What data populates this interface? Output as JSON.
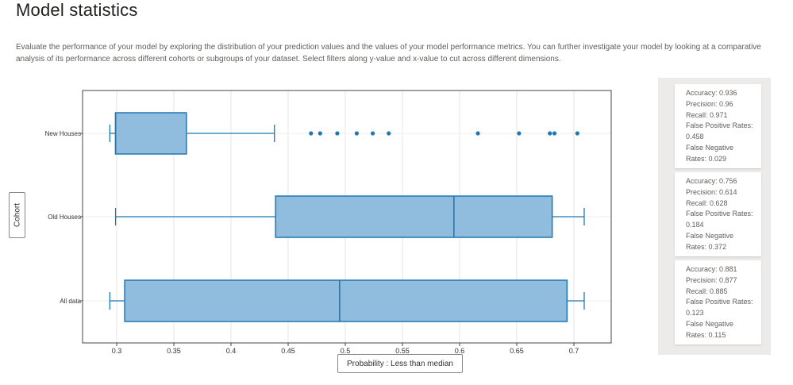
{
  "page": {
    "title": "Model statistics",
    "description": "Evaluate the performance of your model by exploring the distribution of your prediction values and the values of your model performance metrics. You can further investigate your model by looking at a comparative analysis of its performance across different cohorts or subgroups of your dataset. Select filters along y-value and x-value to cut across different dimensions."
  },
  "controls": {
    "y_axis_button": "Cohort",
    "x_axis_button": "Probability : Less than median"
  },
  "colors": {
    "box_fill": "#8ab8dc",
    "box_stroke": "#1f77b4",
    "outlier": "#1f77b4"
  },
  "chart_data": {
    "type": "box",
    "orientation": "horizontal",
    "xlim": [
      0.27,
      0.73
    ],
    "xticks": [
      0.3,
      0.35,
      0.4,
      0.45,
      0.5,
      0.55,
      0.6,
      0.65,
      0.7
    ],
    "grid": true,
    "categories": [
      "New Houses",
      "Old Houses",
      "All data"
    ],
    "series": [
      {
        "name": "New Houses",
        "min": 0.294,
        "q1": 0.299,
        "median": 0.299,
        "q3": 0.361,
        "max": 0.438,
        "outliers": [
          0.47,
          0.478,
          0.493,
          0.51,
          0.524,
          0.538,
          0.616,
          0.652,
          0.679,
          0.683,
          0.703
        ]
      },
      {
        "name": "Old Houses",
        "min": 0.299,
        "q1": 0.439,
        "median": 0.595,
        "q3": 0.681,
        "max": 0.709,
        "outliers": []
      },
      {
        "name": "All data",
        "min": 0.294,
        "q1": 0.307,
        "median": 0.495,
        "q3": 0.694,
        "max": 0.709,
        "outliers": []
      }
    ]
  },
  "stats": [
    {
      "accuracy": "Accuracy: 0.936",
      "precision": "Precision: 0.96",
      "recall": "Recall: 0.971",
      "fpr_label": "False Positive Rates:",
      "fpr_value": "0.458",
      "fnr_label": "False Negative",
      "fnr_value": "Rates: 0.029"
    },
    {
      "accuracy": "Accuracy: 0.756",
      "precision": "Precision: 0.614",
      "recall": "Recall: 0.628",
      "fpr_label": "False Positive Rates:",
      "fpr_value": "0.184",
      "fnr_label": "False Negative",
      "fnr_value": "Rates: 0.372"
    },
    {
      "accuracy": "Accuracy: 0.881",
      "precision": "Precision: 0.877",
      "recall": "Recall: 0.885",
      "fpr_label": "False Positive Rates:",
      "fpr_value": "0.123",
      "fnr_label": "False Negative",
      "fnr_value": "Rates: 0.115"
    }
  ]
}
